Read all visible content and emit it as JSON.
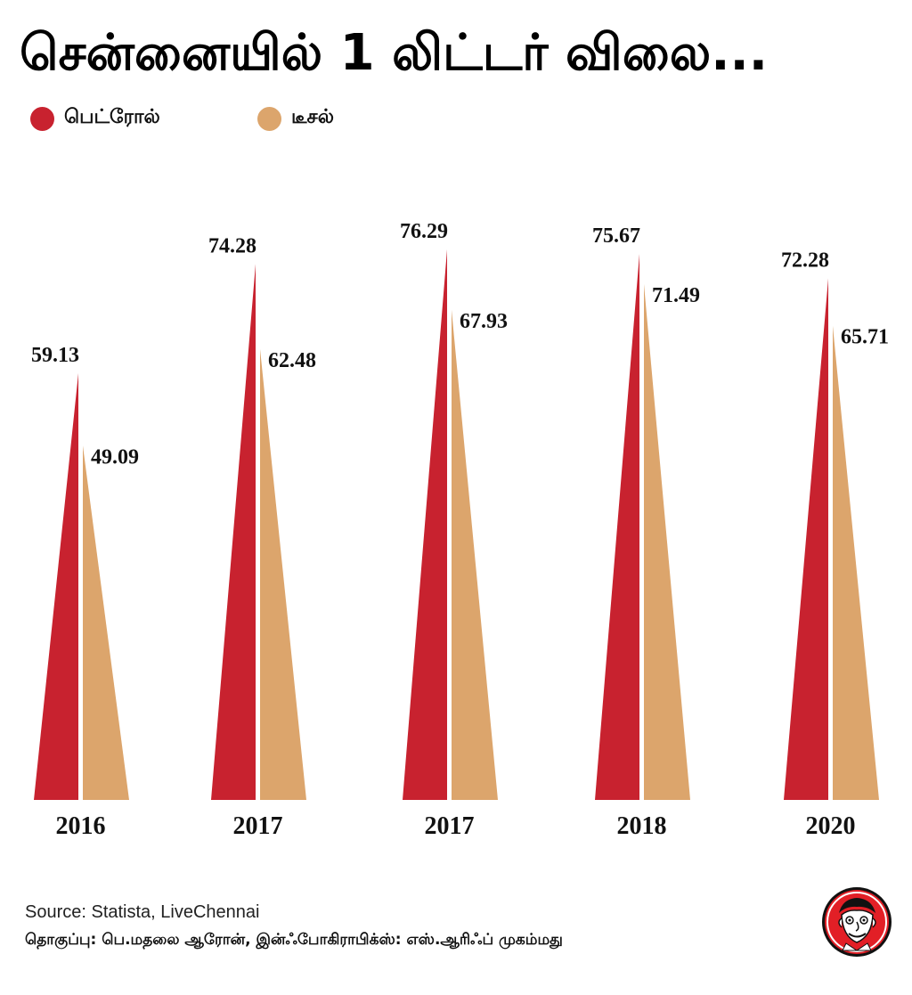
{
  "chart_data": {
    "type": "bar",
    "title": "சென்னையில் 1 லிட்டர் விலை...",
    "categories": [
      "2016",
      "2017",
      "2017",
      "2018",
      "2020"
    ],
    "series": [
      {
        "name": "பெட்ரோல்",
        "color": "#c8222f",
        "values": [
          59.13,
          74.28,
          76.29,
          75.67,
          72.28
        ]
      },
      {
        "name": "டீசல்",
        "color": "#dca56c",
        "values": [
          49.09,
          62.48,
          67.93,
          71.49,
          65.71
        ]
      }
    ],
    "xlabel": "",
    "ylabel": "",
    "grid": false,
    "legend_position": "top-left"
  },
  "footer": {
    "source": "Source: Statista, LiveChennai",
    "credits": "தொகுப்பு: பெ.மதலை ஆரோன், இன்ஃபோகிராபிக்ஸ்: எஸ்.ஆரிஃப் முகம்மது"
  },
  "logo": {
    "icon": "cartoon-face-logo-icon",
    "color": "#e21f26"
  }
}
